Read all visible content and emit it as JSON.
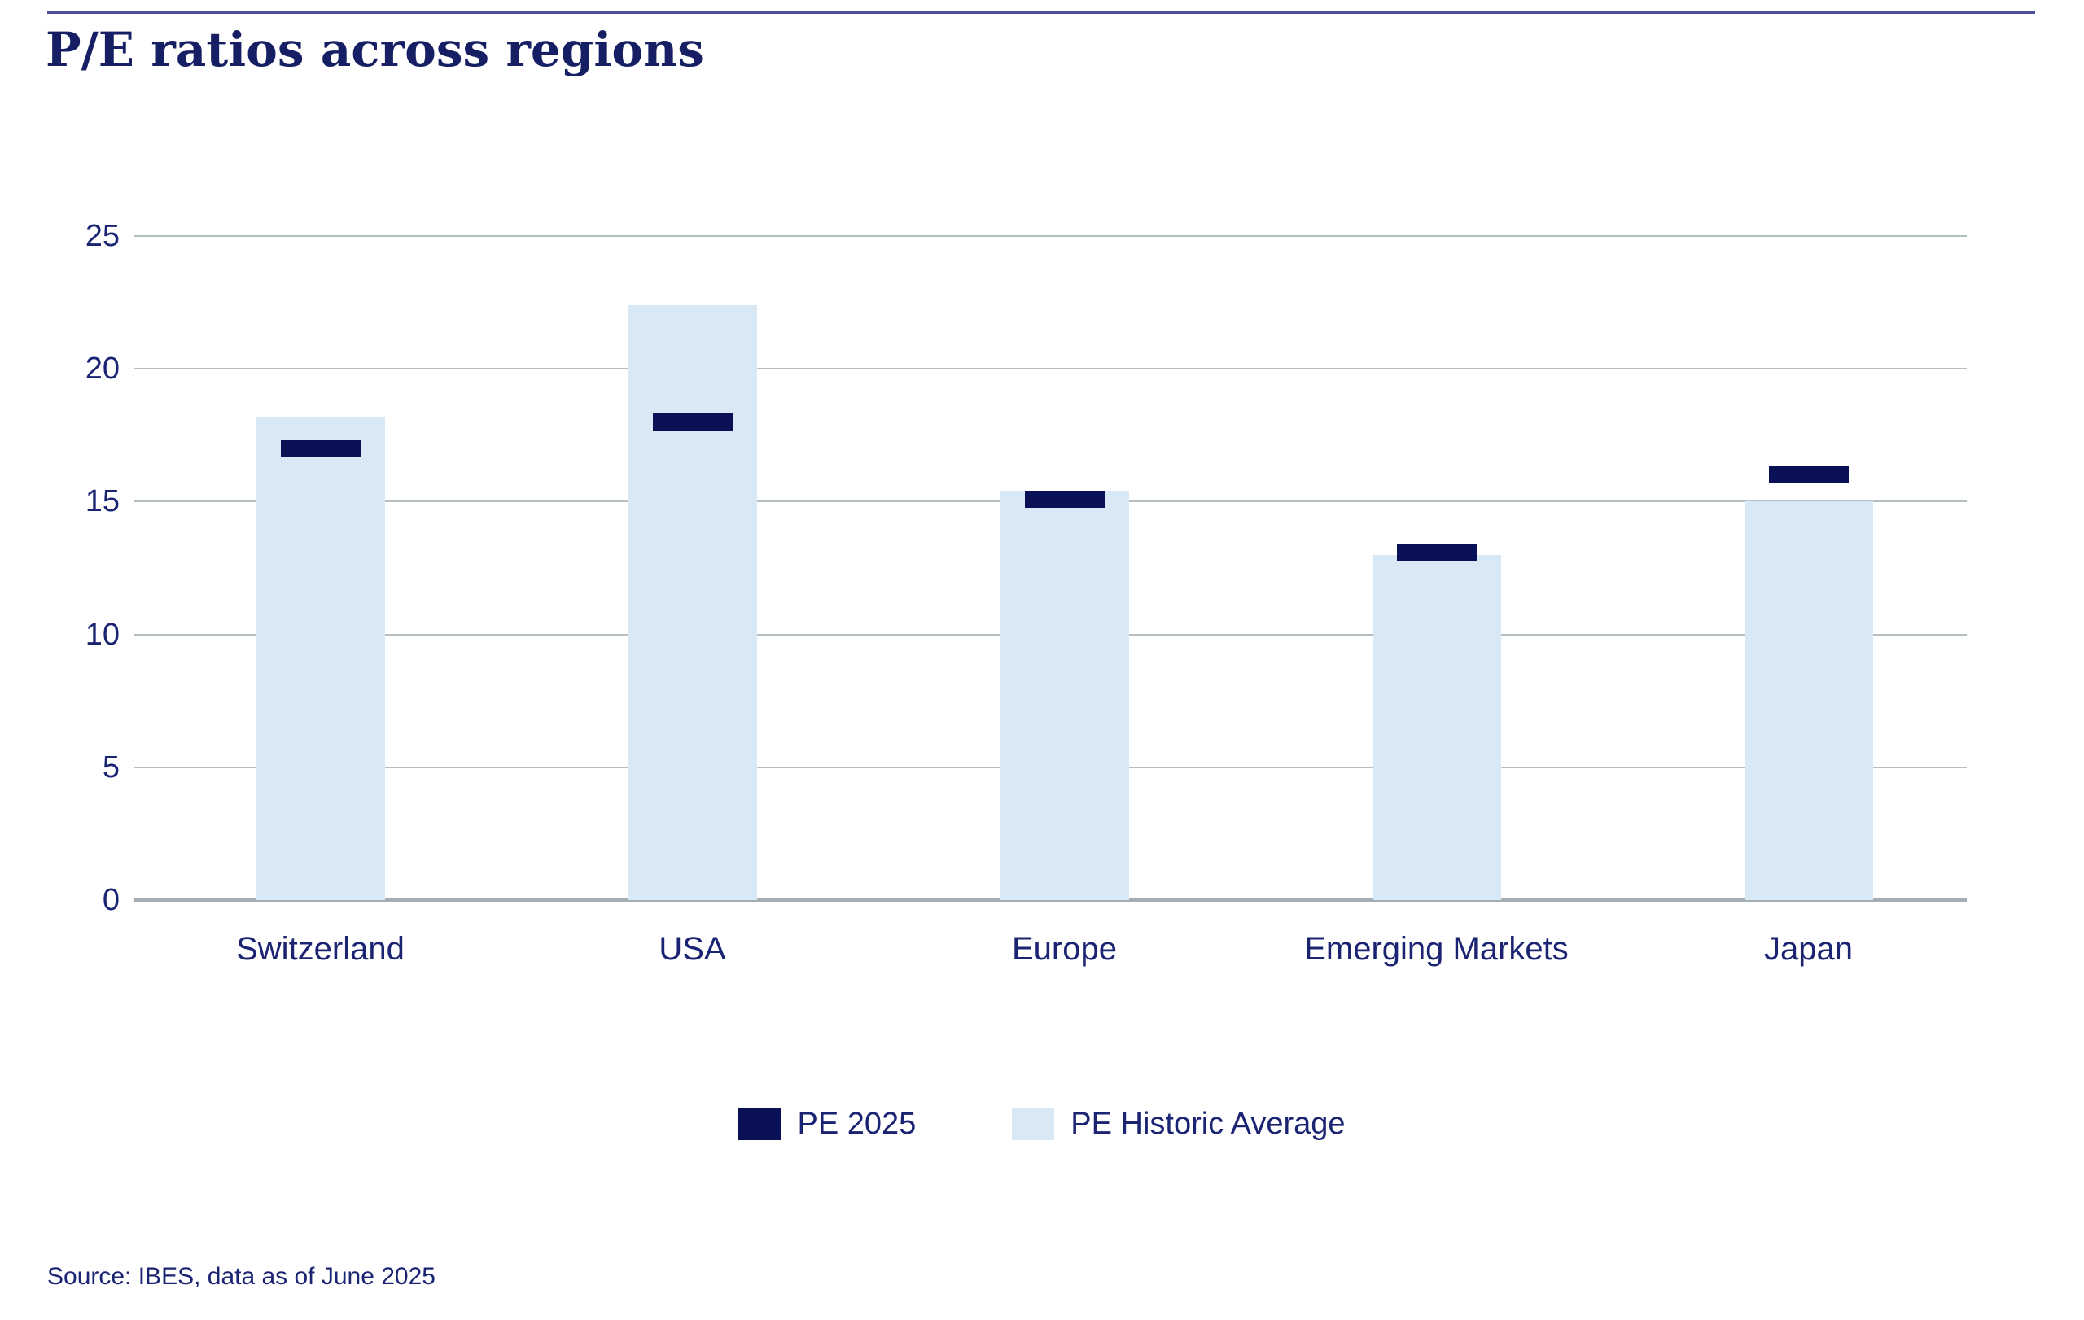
{
  "page": {
    "source": "Source: IBES, data as of June 2025"
  },
  "colors": {
    "title_navy": "#161f63",
    "text_navy": "#1a2472",
    "pe_2025": "#0a1055",
    "pe_historic": "#d8e8f5",
    "top_rule": "#4c4f9e",
    "gridline": "#b4bfc4",
    "axis_line": "#a3adb2"
  },
  "chart_data": {
    "type": "bar",
    "title": "P/E ratios across regions",
    "categories": [
      "Switzerland",
      "USA",
      "Europe",
      "Emerging Markets",
      "Japan"
    ],
    "series": [
      {
        "name": "PE 2025",
        "style": "marker",
        "color": "#0a1055",
        "values": [
          17.0,
          18.0,
          15.1,
          13.1,
          16.0
        ]
      },
      {
        "name": "PE Historic Average",
        "style": "bar",
        "color": "#d8e8f5",
        "values": [
          18.2,
          22.4,
          15.4,
          13.0,
          15.0
        ]
      }
    ],
    "xlabel": "",
    "ylabel": "",
    "ylim": [
      0,
      25
    ],
    "yticks": [
      0,
      5,
      10,
      15,
      20,
      25
    ],
    "grid": true,
    "legend_position": "bottom",
    "source_note": "Source: IBES, data as of June 2025"
  }
}
